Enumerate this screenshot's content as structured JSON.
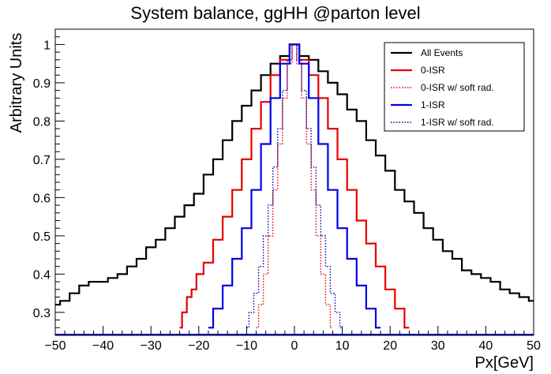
{
  "chart_data": {
    "type": "line",
    "title": "System balance, ggHH @parton level",
    "xlabel": "Px[GeV]",
    "ylabel": "Arbitrary Units",
    "xlim": [
      -50,
      50
    ],
    "ylim": [
      0.24,
      1.04
    ],
    "x_ticks": [
      -50,
      -40,
      -30,
      -20,
      -10,
      0,
      10,
      20,
      30,
      40,
      50
    ],
    "x_tick_labels": [
      "−50",
      "−40",
      "−30",
      "−20",
      "−10",
      "0",
      "10",
      "20",
      "30",
      "40",
      "50"
    ],
    "y_ticks": [
      0.3,
      0.4,
      0.5,
      0.6,
      0.7,
      0.8,
      0.9,
      1.0
    ],
    "y_tick_labels": [
      "0.3",
      "0.4",
      "0.5",
      "0.6",
      "0.7",
      "0.8",
      "0.9",
      "1"
    ],
    "legend_position": "top-right",
    "grid": false,
    "series": [
      {
        "name": "All Events",
        "color": "#000000",
        "dash": "solid",
        "points": [
          [
            -50,
            0.32
          ],
          [
            -48,
            0.33
          ],
          [
            -46,
            0.35
          ],
          [
            -44,
            0.37
          ],
          [
            -42,
            0.38
          ],
          [
            -40,
            0.38
          ],
          [
            -38,
            0.39
          ],
          [
            -36,
            0.4
          ],
          [
            -34,
            0.42
          ],
          [
            -32,
            0.44
          ],
          [
            -30,
            0.47
          ],
          [
            -28,
            0.49
          ],
          [
            -26,
            0.52
          ],
          [
            -24,
            0.55
          ],
          [
            -22,
            0.58
          ],
          [
            -20,
            0.61
          ],
          [
            -18,
            0.66
          ],
          [
            -16,
            0.7
          ],
          [
            -14,
            0.75
          ],
          [
            -12,
            0.8
          ],
          [
            -10,
            0.84
          ],
          [
            -8,
            0.88
          ],
          [
            -6,
            0.92
          ],
          [
            -4,
            0.95
          ],
          [
            -2,
            0.97
          ],
          [
            0,
            1.0
          ],
          [
            2,
            0.97
          ],
          [
            4,
            0.96
          ],
          [
            6,
            0.93
          ],
          [
            8,
            0.9
          ],
          [
            10,
            0.87
          ],
          [
            12,
            0.83
          ],
          [
            14,
            0.8
          ],
          [
            16,
            0.75
          ],
          [
            18,
            0.71
          ],
          [
            20,
            0.67
          ],
          [
            22,
            0.62
          ],
          [
            24,
            0.59
          ],
          [
            26,
            0.56
          ],
          [
            28,
            0.52
          ],
          [
            30,
            0.49
          ],
          [
            32,
            0.46
          ],
          [
            34,
            0.44
          ],
          [
            36,
            0.41
          ],
          [
            38,
            0.4
          ],
          [
            40,
            0.39
          ],
          [
            42,
            0.38
          ],
          [
            44,
            0.36
          ],
          [
            46,
            0.35
          ],
          [
            48,
            0.34
          ],
          [
            50,
            0.33
          ]
        ]
      },
      {
        "name": "0-ISR",
        "color": "#e60000",
        "dash": "solid",
        "points": [
          [
            -24,
            0.26
          ],
          [
            -23,
            0.3
          ],
          [
            -22,
            0.34
          ],
          [
            -21,
            0.36
          ],
          [
            -20,
            0.4
          ],
          [
            -18,
            0.43
          ],
          [
            -16,
            0.49
          ],
          [
            -14,
            0.55
          ],
          [
            -12,
            0.62
          ],
          [
            -10,
            0.7
          ],
          [
            -8,
            0.78
          ],
          [
            -6,
            0.85
          ],
          [
            -4,
            0.92
          ],
          [
            -2,
            0.96
          ],
          [
            0,
            1.0
          ],
          [
            2,
            0.96
          ],
          [
            4,
            0.92
          ],
          [
            6,
            0.86
          ],
          [
            8,
            0.78
          ],
          [
            10,
            0.7
          ],
          [
            12,
            0.62
          ],
          [
            14,
            0.54
          ],
          [
            16,
            0.48
          ],
          [
            18,
            0.42
          ],
          [
            20,
            0.36
          ],
          [
            22,
            0.31
          ],
          [
            24,
            0.26
          ]
        ]
      },
      {
        "name": "0-ISR w/ soft rad.",
        "color": "#e60000",
        "dash": "dotted",
        "points": [
          [
            -8,
            0.26
          ],
          [
            -7,
            0.32
          ],
          [
            -6,
            0.4
          ],
          [
            -5,
            0.5
          ],
          [
            -4,
            0.62
          ],
          [
            -3,
            0.74
          ],
          [
            -2,
            0.86
          ],
          [
            -1,
            0.95
          ],
          [
            0,
            1.0
          ],
          [
            1,
            0.95
          ],
          [
            2,
            0.86
          ],
          [
            3,
            0.74
          ],
          [
            4,
            0.62
          ],
          [
            5,
            0.5
          ],
          [
            6,
            0.4
          ],
          [
            7,
            0.32
          ],
          [
            8,
            0.26
          ]
        ]
      },
      {
        "name": "1-ISR",
        "color": "#0000e6",
        "dash": "solid",
        "points": [
          [
            -18,
            0.26
          ],
          [
            -16,
            0.31
          ],
          [
            -14,
            0.37
          ],
          [
            -12,
            0.44
          ],
          [
            -10,
            0.52
          ],
          [
            -8,
            0.62
          ],
          [
            -6,
            0.74
          ],
          [
            -4,
            0.86
          ],
          [
            -2,
            0.95
          ],
          [
            0,
            1.0
          ],
          [
            2,
            0.95
          ],
          [
            4,
            0.86
          ],
          [
            6,
            0.74
          ],
          [
            8,
            0.62
          ],
          [
            10,
            0.52
          ],
          [
            12,
            0.44
          ],
          [
            14,
            0.37
          ],
          [
            16,
            0.31
          ],
          [
            18,
            0.26
          ]
        ]
      },
      {
        "name": "1-ISR w/ soft rad.",
        "color": "#0000b4",
        "dash": "dotted",
        "points": [
          [
            -10,
            0.26
          ],
          [
            -9,
            0.3
          ],
          [
            -8,
            0.35
          ],
          [
            -7,
            0.42
          ],
          [
            -6,
            0.5
          ],
          [
            -5,
            0.58
          ],
          [
            -4,
            0.68
          ],
          [
            -3,
            0.78
          ],
          [
            -2,
            0.88
          ],
          [
            -1,
            0.96
          ],
          [
            0,
            1.0
          ],
          [
            1,
            0.96
          ],
          [
            2,
            0.88
          ],
          [
            3,
            0.78
          ],
          [
            4,
            0.68
          ],
          [
            5,
            0.58
          ],
          [
            6,
            0.5
          ],
          [
            7,
            0.42
          ],
          [
            8,
            0.35
          ],
          [
            9,
            0.3
          ],
          [
            10,
            0.26
          ]
        ]
      }
    ]
  }
}
